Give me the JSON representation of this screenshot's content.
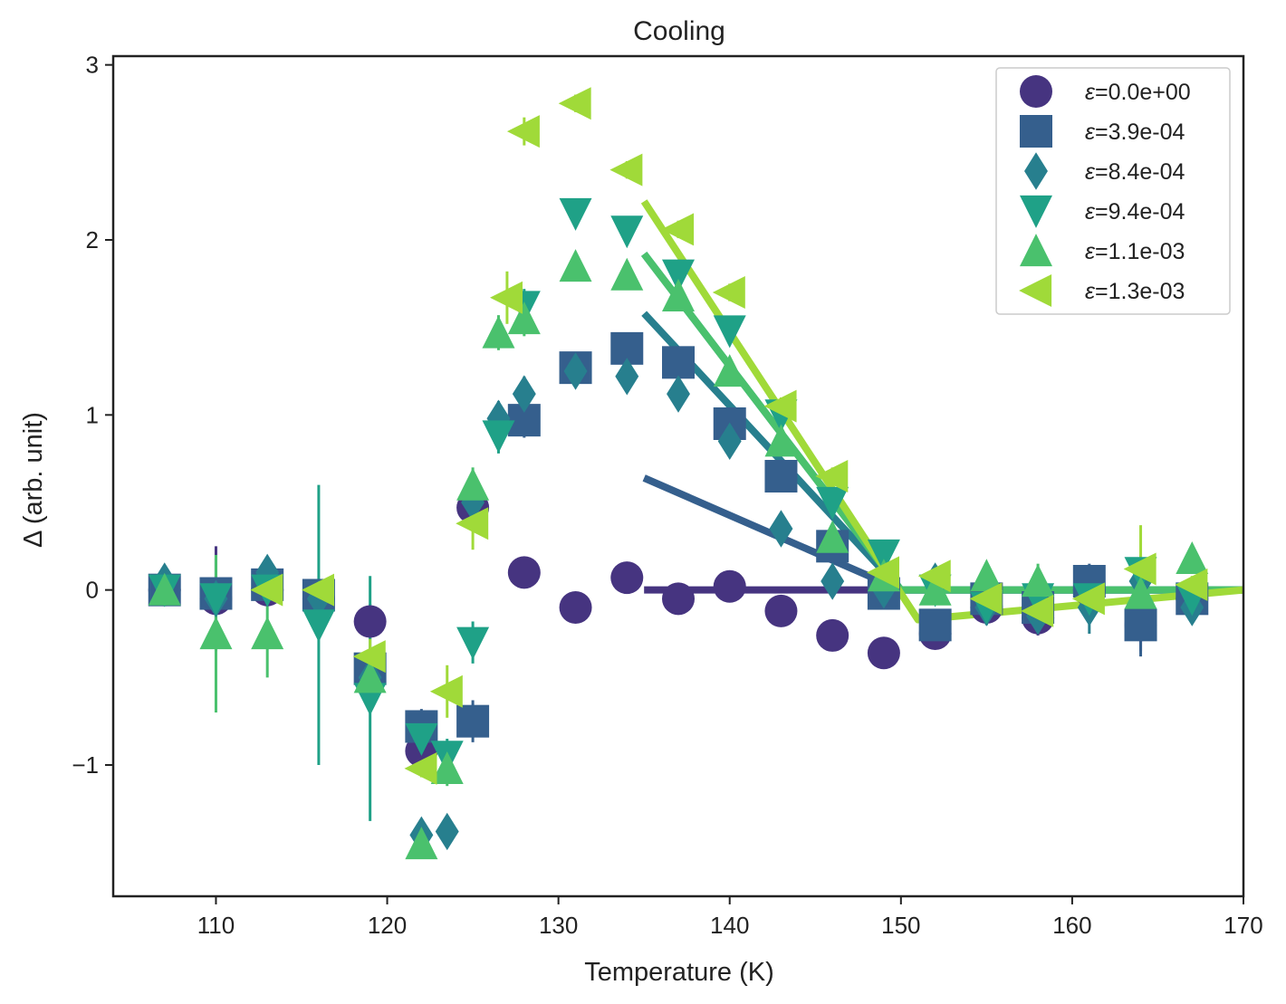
{
  "chart_data": {
    "type": "scatter",
    "title": "Cooling",
    "xlabel": "Temperature (K)",
    "ylabel": "Δ (arb. unit)",
    "xlim": [
      104,
      170
    ],
    "ylim": [
      -1.75,
      3.05
    ],
    "xticks": [
      110,
      120,
      130,
      140,
      150,
      160,
      170
    ],
    "yticks": [
      -1,
      0,
      1,
      2,
      3
    ],
    "xtick_labels": [
      "110",
      "120",
      "130",
      "140",
      "150",
      "160",
      "170"
    ],
    "ytick_labels": [
      "−1",
      "0",
      "1",
      "2",
      "3"
    ],
    "legend_position": "top-right",
    "series": [
      {
        "name": "ε=0.0e+00",
        "label_symbol": "ε",
        "label_value": "=0.0e+00",
        "color": "#463480",
        "marker": "circle",
        "x": [
          107,
          110,
          113,
          116,
          119,
          122,
          125,
          128,
          131,
          134,
          137,
          140,
          143,
          146,
          149,
          152,
          155,
          158,
          161,
          164,
          167
        ],
        "y": [
          0.0,
          -0.05,
          0.0,
          -0.05,
          -0.18,
          -0.92,
          0.47,
          0.1,
          -0.1,
          0.07,
          -0.05,
          0.02,
          -0.12,
          -0.26,
          -0.36,
          -0.25,
          -0.1,
          -0.16,
          0.0,
          -0.2,
          -0.05
        ],
        "err": [
          0.05,
          0.3,
          0.05,
          0.05,
          0.1,
          0.12,
          0.08,
          0.05,
          0.05,
          0.05,
          0.05,
          0.05,
          0.05,
          0.05,
          0.05,
          0.05,
          0.1,
          0.1,
          0.1,
          0.15,
          0.05
        ],
        "fit": {
          "x": [
            135,
            150,
            170
          ],
          "y": [
            0.0,
            0.0,
            0.0
          ]
        }
      },
      {
        "name": "ε=3.9e-04",
        "label_symbol": "ε",
        "label_value": "=3.9e-04",
        "color": "#355f8d",
        "marker": "square",
        "x": [
          107,
          110,
          113,
          116,
          119,
          122,
          125,
          128,
          131,
          134,
          137,
          140,
          143,
          146,
          149,
          152,
          155,
          158,
          161,
          164,
          167
        ],
        "y": [
          0.0,
          -0.02,
          0.03,
          -0.03,
          -0.45,
          -0.78,
          -0.75,
          0.97,
          1.27,
          1.38,
          1.3,
          0.95,
          0.65,
          0.25,
          -0.02,
          -0.2,
          -0.05,
          -0.1,
          0.05,
          -0.2,
          -0.05
        ],
        "err": [
          0.05,
          0.2,
          0.05,
          0.05,
          0.1,
          0.1,
          0.12,
          0.1,
          0.05,
          0.05,
          0.05,
          0.05,
          0.05,
          0.05,
          0.05,
          0.05,
          0.1,
          0.1,
          0.1,
          0.18,
          0.05
        ],
        "fit": {
          "x": [
            135,
            150,
            170
          ],
          "y": [
            0.64,
            0.0,
            0.0
          ]
        }
      },
      {
        "name": "ε=8.4e-04",
        "label_symbol": "ε",
        "label_value": "=8.4e-04",
        "color": "#277f8e",
        "marker": "diamond",
        "x": [
          107,
          110,
          113,
          116,
          119,
          122,
          123.5,
          125,
          126.5,
          128,
          131,
          134,
          137,
          140,
          143,
          146,
          149,
          152,
          155,
          158,
          161,
          164,
          167
        ],
        "y": [
          0.05,
          -0.05,
          0.1,
          -0.05,
          -0.5,
          -1.4,
          -1.38,
          0.5,
          0.98,
          1.12,
          1.25,
          1.22,
          1.12,
          0.85,
          0.35,
          0.05,
          0.0,
          0.05,
          -0.1,
          -0.15,
          -0.1,
          0.05,
          -0.1
        ],
        "err": [
          0.05,
          0.1,
          0.05,
          0.05,
          0.1,
          0.05,
          0.05,
          0.08,
          0.1,
          0.1,
          0.05,
          0.05,
          0.05,
          0.05,
          0.05,
          0.05,
          0.05,
          0.05,
          0.1,
          0.1,
          0.15,
          0.1,
          0.05
        ],
        "fit": {
          "x": [
            135,
            150,
            170
          ],
          "y": [
            1.58,
            0.0,
            0.0
          ]
        }
      },
      {
        "name": "ε=9.4e-04",
        "label_symbol": "ε",
        "label_value": "=9.4e-04",
        "color": "#1fa187",
        "marker": "triangle-down",
        "x": [
          107,
          110,
          113,
          116,
          119,
          122,
          123.5,
          125,
          126.5,
          128,
          131,
          134,
          137,
          140,
          143,
          146,
          149,
          152,
          155,
          158,
          161,
          164,
          167
        ],
        "y": [
          0.0,
          -0.05,
          0.0,
          -0.2,
          -0.62,
          -0.85,
          -0.95,
          -0.3,
          0.88,
          1.62,
          2.15,
          2.05,
          1.8,
          1.48,
          1.0,
          0.5,
          0.2,
          0.0,
          -0.1,
          -0.05,
          -0.05,
          0.1,
          -0.05
        ],
        "err": [
          0.05,
          0.1,
          0.05,
          0.8,
          0.7,
          0.1,
          0.1,
          0.12,
          0.1,
          0.1,
          0.05,
          0.05,
          0.05,
          0.05,
          0.05,
          0.05,
          0.05,
          0.05,
          0.1,
          0.1,
          0.1,
          0.1,
          0.05
        ],
        "fit": {
          "x": [
            135,
            150,
            170
          ],
          "y": [
            1.92,
            0.0,
            0.0
          ]
        }
      },
      {
        "name": "ε=1.1e-03",
        "label_symbol": "ε",
        "label_value": "=1.1e-03",
        "color": "#4ac16d",
        "marker": "triangle-up",
        "x": [
          107,
          110,
          113,
          119,
          122,
          123.5,
          125,
          126.5,
          128,
          131,
          134,
          137,
          140,
          143,
          146,
          149,
          152,
          155,
          158,
          164,
          167
        ],
        "y": [
          0.0,
          -0.25,
          -0.25,
          -0.5,
          -1.45,
          -1.02,
          0.6,
          1.47,
          1.55,
          1.85,
          1.8,
          1.68,
          1.25,
          0.85,
          0.3,
          0.08,
          0.0,
          0.08,
          0.05,
          -0.02,
          0.18
        ],
        "err": [
          0.05,
          0.45,
          0.25,
          0.1,
          0.05,
          0.1,
          0.1,
          0.1,
          0.1,
          0.05,
          0.05,
          0.05,
          0.05,
          0.05,
          0.05,
          0.05,
          0.05,
          0.05,
          0.1,
          0.1,
          0.05
        ],
        "fit": {
          "x": [
            135,
            150,
            170
          ],
          "y": [
            1.92,
            0.0,
            0.0
          ]
        }
      },
      {
        "name": "ε=1.3e-03",
        "label_symbol": "ε",
        "label_value": "=1.3e-03",
        "color": "#a0da39",
        "marker": "triangle-left",
        "x": [
          113,
          116,
          119,
          122,
          123.5,
          125,
          127,
          128,
          131,
          134,
          137,
          140,
          143,
          146,
          149,
          152,
          155,
          158,
          161,
          164,
          167
        ],
        "y": [
          0.0,
          0.0,
          -0.38,
          -1.02,
          -0.58,
          0.38,
          1.67,
          2.62,
          2.78,
          2.4,
          2.06,
          1.7,
          1.05,
          0.65,
          0.1,
          0.08,
          -0.05,
          -0.12,
          -0.05,
          0.12,
          0.03
        ],
        "err": [
          0.05,
          0.05,
          0.1,
          0.05,
          0.15,
          0.15,
          0.15,
          0.08,
          0.05,
          0.05,
          0.05,
          0.05,
          0.05,
          0.05,
          0.05,
          0.05,
          0.05,
          0.05,
          0.05,
          0.25,
          0.05
        ],
        "fit": {
          "x": [
            135,
            151,
            170
          ],
          "y": [
            2.22,
            -0.17,
            0.0
          ]
        }
      }
    ]
  }
}
